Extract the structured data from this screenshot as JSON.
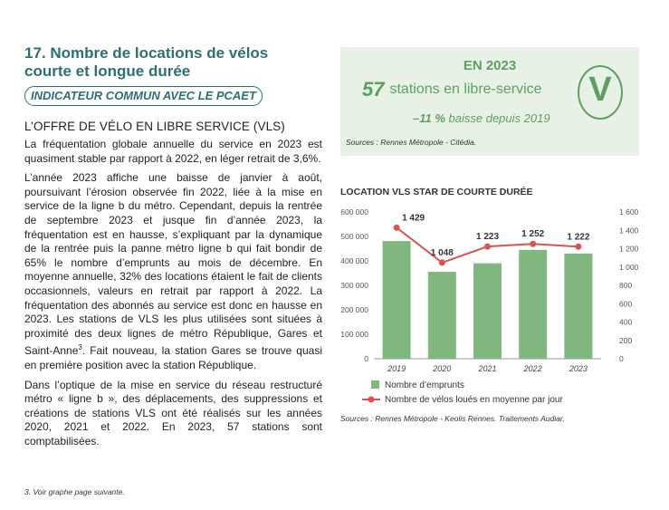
{
  "left": {
    "title": "17. Nombre de locations de vélos courte et longue durée",
    "pill": "INDICATEUR COMMUN AVEC LE PCAET",
    "section": "L’OFFRE DE VÉLO EN LIBRE SERVICE (VLS)",
    "para1": "La fréquentation globale annuelle du service en 2023 est quasiment stable par rapport à 2022, en léger retrait de 3,6%.",
    "para2a": "L’année 2023 affiche une baisse de janvier à août, poursuivant l’érosion observée fin 2022, liée à la mise en service de la ligne b du métro. Cependant, depuis la rentrée de septembre 2023 et jusque fin d’année 2023, la fréquentation est en hausse, s’expliquant par la dynamique de la rentrée puis la panne métro ligne b qui fait bondir de 65% le nombre d’emprunts au mois de décembre. En moyenne annuelle, 32% des locations étaient le fait de clients occasionnels, valeurs en retrait par rapport à 2022. La fréquentation des abonnés au service est donc en hausse en 2023. Les stations de VLS les plus utilisées sont situées à proximité des deux lignes de métro République, Gares et Saint-Anne",
    "para2sup": "3",
    "para2b": ". Fait nouveau, la station Gares se trouve quasi en première position avec la station République.",
    "para3": "Dans l’optique de la mise en service du réseau restructuré métro « ligne b », des déplacements, des suppressions et créations de stations VLS ont été réalisés sur les années 2020, 2021 et 2022. En 2023, 57 stations sont comptabilisées.",
    "footnote": "3. Voir graphe page suivante."
  },
  "kpi": {
    "year": "EN 2023",
    "number": "57",
    "label": "stations en libre-service",
    "change": "–11 %",
    "change_label": "baisse depuis 2019",
    "source": "Sources : Rennes Métropole - Citédia.",
    "badge": "V"
  },
  "chart_title": "LOCATION VLS STAR DE COURTE DURÉE",
  "chart_source": "Sources : Rennes Métropole - Keolis Rennes. Traitements Audiar.",
  "colors": {
    "teal": "#2e6f72",
    "green": "#5da062",
    "bar": "#7fb77e",
    "line": "#d9534f"
  },
  "chart_data": {
    "type": "bar+line",
    "categories": [
      "2019",
      "2020",
      "2021",
      "2022",
      "2023"
    ],
    "series": [
      {
        "name": "Nombre d’emprunts",
        "type": "bar",
        "axis": "left",
        "values": [
          481000,
          355000,
          390000,
          445000,
          430000
        ]
      },
      {
        "name": "Nombre de vélos loués en moyenne par jour",
        "type": "line",
        "axis": "right",
        "values": [
          1429,
          1048,
          1223,
          1252,
          1222
        ],
        "labels": [
          "1 429",
          "1 048",
          "1 223",
          "1 252",
          "1 222"
        ]
      }
    ],
    "left_axis": {
      "min": 0,
      "max": 600000,
      "ticks": [
        "0",
        "100 000",
        "200 000",
        "300 000",
        "400 000",
        "500 000",
        "600 000"
      ]
    },
    "right_axis": {
      "min": 0,
      "max": 1600,
      "ticks": [
        "0",
        "200",
        "400",
        "600",
        "800",
        "1 000",
        "1 200",
        "1 400",
        "1 600"
      ]
    }
  }
}
